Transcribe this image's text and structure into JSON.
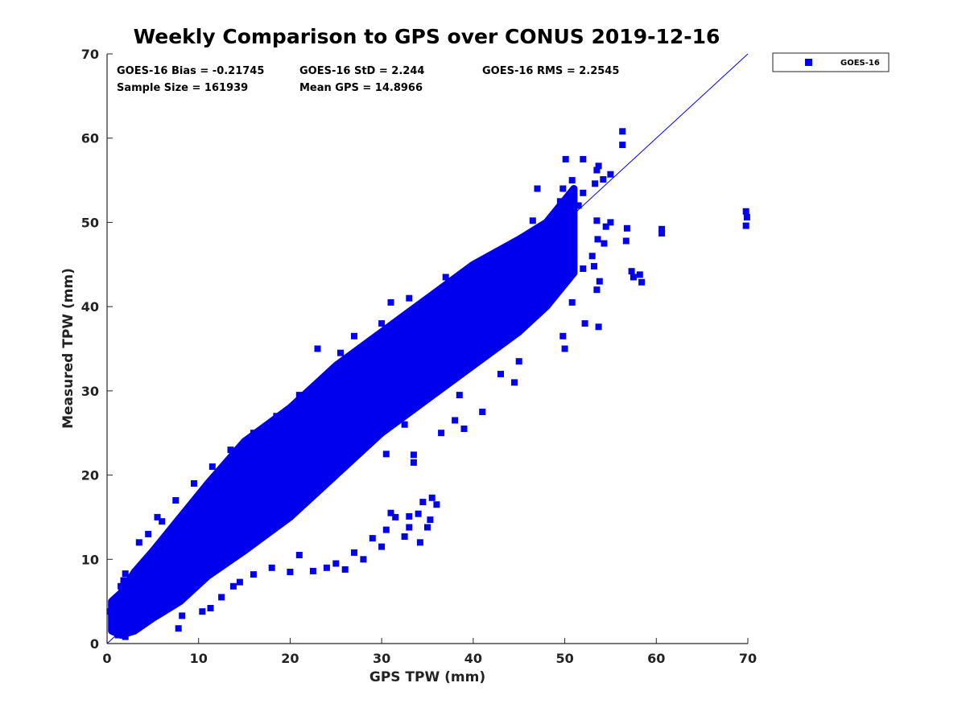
{
  "chart_data": {
    "type": "scatter",
    "title": "Weekly Comparison to GPS over CONUS 2019-12-16",
    "xlabel": "GPS TPW (mm)",
    "ylabel": "Measured TPW (mm)",
    "xlim": [
      0,
      70
    ],
    "ylim": [
      0,
      70
    ],
    "xticks": [
      "0",
      "10",
      "20",
      "30",
      "40",
      "50",
      "60",
      "70"
    ],
    "yticks": [
      "0",
      "10",
      "20",
      "30",
      "40",
      "50",
      "60",
      "70"
    ],
    "grid": false,
    "legend_position": "outside top-right",
    "marker_color": "#0000ee",
    "stats": [
      "GOES-16 Bias = -0.21745",
      "GOES-16 StD = 2.244",
      "GOES-16 RMS = 2.2545",
      "Sample Size = 161939",
      "Mean GPS = 14.8966"
    ],
    "reference_line": {
      "x": [
        0,
        70
      ],
      "y": [
        0,
        70
      ]
    },
    "series": [
      {
        "name": "GOES-16",
        "color": "#0000ee",
        "dense_band": [
          [
            0.5,
            1.5,
            5.0
          ],
          [
            1.5,
            1.0,
            6.0
          ],
          [
            3.0,
            1.5,
            8.5
          ],
          [
            5.0,
            3.0,
            11.0
          ],
          [
            8.0,
            5.0,
            15.0
          ],
          [
            11.0,
            8.0,
            19.0
          ],
          [
            15.0,
            11.0,
            24.0
          ],
          [
            20.0,
            15.0,
            28.0
          ],
          [
            25.0,
            20.0,
            33.0
          ],
          [
            30.0,
            25.0,
            37.0
          ],
          [
            35.0,
            29.0,
            41.0
          ],
          [
            40.0,
            33.0,
            45.0
          ],
          [
            45.0,
            37.0,
            48.0
          ],
          [
            48.0,
            40.0,
            50.0
          ],
          [
            51.0,
            44.0,
            54.0
          ]
        ],
        "points": [
          [
            0.3,
            3.8
          ],
          [
            0.5,
            3.2
          ],
          [
            1.2,
            1.0
          ],
          [
            2.0,
            0.8
          ],
          [
            7.8,
            1.8
          ],
          [
            8.2,
            3.3
          ],
          [
            10.4,
            3.8
          ],
          [
            11.3,
            4.2
          ],
          [
            12.5,
            5.5
          ],
          [
            13.8,
            6.8
          ],
          [
            14.5,
            7.3
          ],
          [
            16.0,
            8.2
          ],
          [
            18.0,
            9.0
          ],
          [
            20.0,
            8.5
          ],
          [
            21.0,
            10.5
          ],
          [
            22.5,
            8.6
          ],
          [
            24.0,
            9.0
          ],
          [
            25.0,
            9.5
          ],
          [
            26.0,
            8.8
          ],
          [
            27.0,
            10.8
          ],
          [
            28.0,
            10.0
          ],
          [
            29.0,
            12.5
          ],
          [
            30.0,
            11.5
          ],
          [
            31.0,
            15.5
          ],
          [
            30.5,
            13.5
          ],
          [
            32.5,
            12.7
          ],
          [
            33.0,
            13.8
          ],
          [
            34.0,
            15.4
          ],
          [
            34.2,
            12.0
          ],
          [
            35.0,
            13.8
          ],
          [
            35.3,
            14.7
          ],
          [
            35.5,
            17.3
          ],
          [
            36.0,
            16.5
          ],
          [
            34.5,
            16.8
          ],
          [
            33.0,
            15.1
          ],
          [
            31.5,
            15.0
          ],
          [
            30.5,
            22.5
          ],
          [
            32.5,
            26.0
          ],
          [
            33.5,
            21.5
          ],
          [
            33.5,
            22.4
          ],
          [
            36.5,
            25.0
          ],
          [
            38.0,
            26.5
          ],
          [
            38.5,
            29.5
          ],
          [
            39.0,
            25.5
          ],
          [
            41.0,
            27.5
          ],
          [
            43.0,
            32.0
          ],
          [
            44.5,
            31.0
          ],
          [
            45.0,
            33.5
          ],
          [
            50.0,
            35.0
          ],
          [
            49.8,
            36.5
          ],
          [
            52.2,
            38.0
          ],
          [
            53.7,
            37.6
          ],
          [
            53.5,
            42.0
          ],
          [
            53.8,
            43.0
          ],
          [
            53.2,
            44.8
          ],
          [
            50.8,
            40.5
          ],
          [
            52.0,
            44.5
          ],
          [
            53.0,
            46.0
          ],
          [
            53.6,
            48.0
          ],
          [
            51.5,
            52.0
          ],
          [
            52.0,
            53.5
          ],
          [
            49.8,
            54.0
          ],
          [
            49.5,
            52.5
          ],
          [
            53.5,
            50.2
          ],
          [
            54.5,
            49.5
          ],
          [
            54.3,
            47.5
          ],
          [
            55.0,
            50.0
          ],
          [
            56.7,
            47.8
          ],
          [
            56.8,
            49.3
          ],
          [
            57.5,
            43.5
          ],
          [
            57.3,
            44.2
          ],
          [
            58.2,
            43.8
          ],
          [
            58.4,
            42.9
          ],
          [
            60.6,
            48.7
          ],
          [
            60.6,
            49.2
          ],
          [
            69.8,
            51.3
          ],
          [
            69.9,
            50.6
          ],
          [
            69.8,
            49.6
          ],
          [
            56.3,
            60.8
          ],
          [
            56.3,
            59.2
          ],
          [
            53.7,
            56.7
          ],
          [
            53.5,
            56.2
          ],
          [
            55.0,
            55.7
          ],
          [
            54.2,
            55.1
          ],
          [
            53.3,
            54.6
          ],
          [
            50.1,
            57.5
          ],
          [
            52.0,
            57.5
          ],
          [
            50.8,
            55.0
          ],
          [
            47.0,
            54.0
          ],
          [
            46.5,
            50.2
          ],
          [
            41.0,
            44.0
          ],
          [
            23.0,
            35.0
          ],
          [
            25.5,
            34.5
          ],
          [
            27.0,
            36.5
          ],
          [
            30.0,
            38.0
          ],
          [
            31.0,
            40.5
          ],
          [
            33.0,
            41.0
          ],
          [
            37.0,
            43.5
          ],
          [
            16.0,
            25.0
          ],
          [
            13.5,
            23.0
          ],
          [
            11.5,
            21.0
          ],
          [
            9.5,
            19.0
          ],
          [
            7.5,
            17.0
          ],
          [
            5.5,
            15.0
          ],
          [
            3.5,
            12.0
          ],
          [
            2.0,
            8.3
          ],
          [
            1.8,
            7.5
          ],
          [
            1.5,
            6.8
          ],
          [
            4.5,
            13.0
          ],
          [
            6.0,
            14.5
          ],
          [
            26.5,
            31.5
          ],
          [
            21.0,
            29.5
          ],
          [
            18.5,
            27.0
          ]
        ]
      }
    ]
  }
}
